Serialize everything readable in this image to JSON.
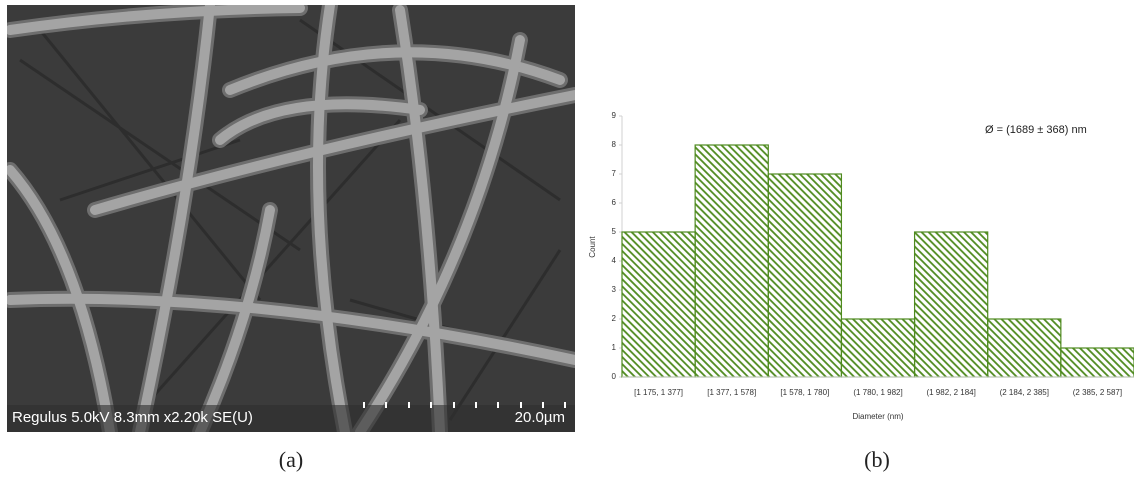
{
  "image_panel": {
    "info": "Regulus 5.0kV 8.3mm x2.20k SE(U)",
    "scale": "20.0µm"
  },
  "captions": [
    "(a)",
    "(b)"
  ],
  "chart_data": {
    "type": "bar",
    "annotation": "Ø = (1689 ± 368) nm",
    "x_label": "Diameter (nm)",
    "y_label": "Count",
    "categories": [
      "[1 175, 1 377]",
      "[1 377, 1 578]",
      "[1 578, 1 780]",
      "(1 780, 1 982]",
      "(1 982, 2 184]",
      "(2 184, 2 385]",
      "(2 385, 2 587]"
    ],
    "values": [
      5,
      8,
      7,
      2,
      5,
      2,
      1
    ],
    "color": "#4e8a1e",
    "ylim": [
      0,
      9
    ],
    "yticks": [
      0,
      1,
      2,
      3,
      4,
      5,
      6,
      7,
      8,
      9
    ],
    "grid": false
  }
}
